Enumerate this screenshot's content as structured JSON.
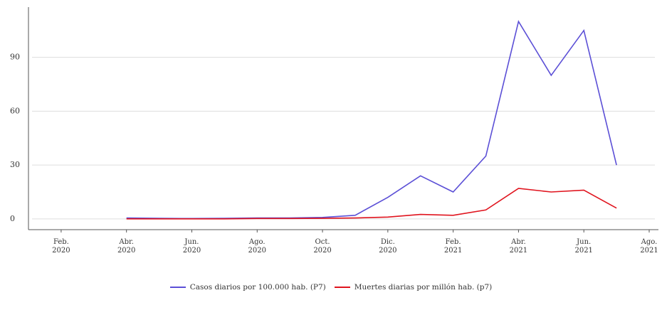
{
  "chart_data": {
    "type": "line",
    "x": [
      "2020-04",
      "2020-05",
      "2020-06",
      "2020-07",
      "2020-08",
      "2020-09",
      "2020-10",
      "2020-11",
      "2020-12",
      "2021-01",
      "2021-02",
      "2021-03",
      "2021-04",
      "2021-05",
      "2021-06",
      "2021-07"
    ],
    "series": [
      {
        "name": "Casos diarios por 100.000 hab. (P7)",
        "color": "#5b4fd6",
        "values": [
          0.5,
          0.3,
          0.2,
          0.3,
          0.5,
          0.5,
          0.8,
          2,
          12,
          24,
          15,
          35,
          110,
          80,
          105,
          30
        ]
      },
      {
        "name": "Muertes diarias por millón hab. (p7)",
        "color": "#e0141e",
        "values": [
          0,
          0,
          0,
          0,
          0.2,
          0.2,
          0.3,
          0.5,
          1,
          2.5,
          2,
          5,
          17,
          15,
          16,
          6
        ]
      }
    ],
    "xlim": [
      "2020-01",
      "2021-08"
    ],
    "xticks": [
      {
        "value": "2020-02",
        "label": "Feb. 2020"
      },
      {
        "value": "2020-04",
        "label": "Abr. 2020"
      },
      {
        "value": "2020-06",
        "label": "Jun. 2020"
      },
      {
        "value": "2020-08",
        "label": "Ago. 2020"
      },
      {
        "value": "2020-10",
        "label": "Oct. 2020"
      },
      {
        "value": "2020-12",
        "label": "Dic. 2020"
      },
      {
        "value": "2021-02",
        "label": "Feb. 2021"
      },
      {
        "value": "2021-04",
        "label": "Abr. 2021"
      },
      {
        "value": "2021-06",
        "label": "Jun. 2021"
      },
      {
        "value": "2021-08",
        "label": "Ago. 2021"
      }
    ],
    "ylim": [
      -6,
      118
    ],
    "yticks": [
      0,
      30,
      60,
      90
    ],
    "grid": true
  }
}
